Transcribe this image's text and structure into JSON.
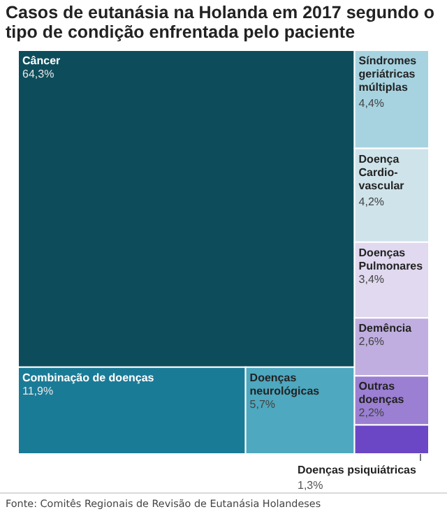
{
  "chart_data": {
    "type": "other",
    "title": "Casos de eutanásia na Holanda em 2017 segundo o tipo de condição enfrentada pelo paciente",
    "categories": [
      "Câncer",
      "Combinação de doenças",
      "Doenças neurológicas",
      "Síndromes geriátricas múltiplas",
      "Doença Cardio-vascular",
      "Doenças Pulmonares",
      "Demência",
      "Outras doenças",
      "Doenças psiquiátricas"
    ],
    "values": [
      64.3,
      11.9,
      5.7,
      4.4,
      4.2,
      3.4,
      2.6,
      2.2,
      1.3
    ],
    "value_labels": [
      "64,3%",
      "11,9%",
      "5,7%",
      "4,4%",
      "4,2%",
      "3,4%",
      "2,6%",
      "2,2%",
      "1,3%"
    ],
    "colors": [
      "#0d4c5b",
      "#1a7b97",
      "#4ea8bf",
      "#a7d3e1",
      "#cfe3ea",
      "#e0d9ef",
      "#bfaedf",
      "#9b7fd2",
      "#6b47c5"
    ],
    "annotations": [
      "Fonte: Comitês Regionais de Revisão de Eutanásia Holandeses"
    ]
  }
}
